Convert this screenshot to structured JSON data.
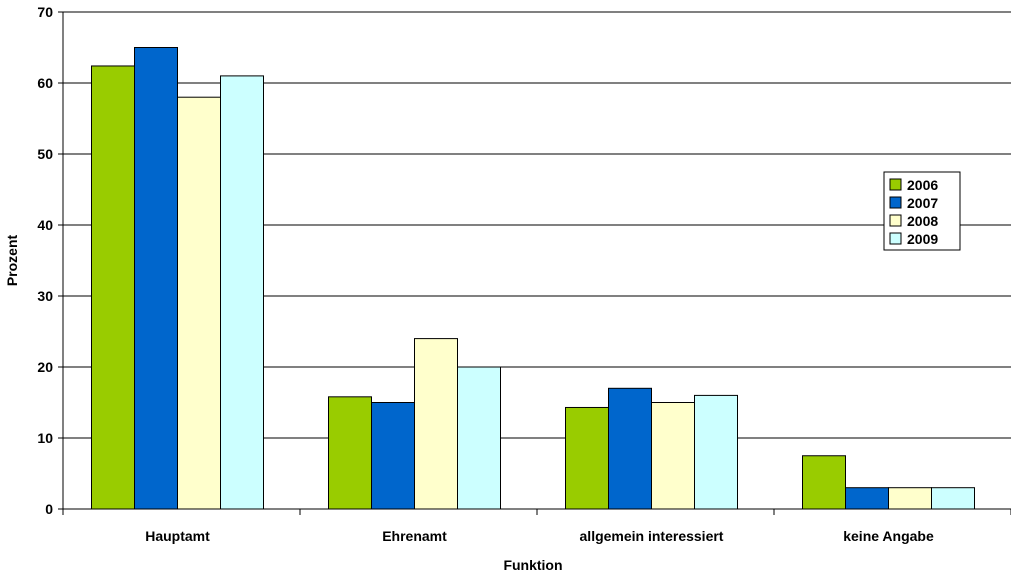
{
  "chart_data": {
    "type": "bar",
    "title": "",
    "xlabel": "Funktion",
    "ylabel": "Prozent",
    "ylim": [
      0,
      70
    ],
    "yticks": [
      0,
      10,
      20,
      30,
      40,
      50,
      60,
      70
    ],
    "grid": true,
    "legend_position": "right",
    "categories": [
      "Hauptamt",
      "Ehrenamt",
      "allgemein interessiert",
      "keine Angabe"
    ],
    "series": [
      {
        "name": "2006",
        "color": "#99CC00",
        "values": [
          62.4,
          15.8,
          14.3,
          7.5
        ]
      },
      {
        "name": "2007",
        "color": "#0066CC",
        "values": [
          65,
          15,
          17,
          3
        ]
      },
      {
        "name": "2008",
        "color": "#FFFFCC",
        "values": [
          58,
          24,
          15,
          3
        ]
      },
      {
        "name": "2009",
        "color": "#CCFFFF",
        "values": [
          61,
          20,
          16,
          3
        ]
      }
    ]
  }
}
